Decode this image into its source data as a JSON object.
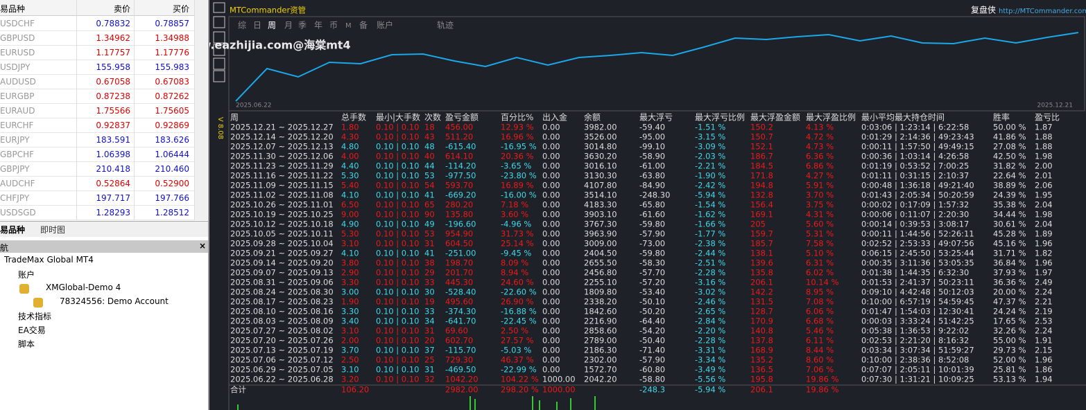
{
  "market_watch": {
    "headers": [
      "易品种",
      "卖价",
      "买价"
    ],
    "rows": [
      [
        "USDCHF",
        "0.78832",
        "0.78857",
        "#1010d0"
      ],
      [
        "GBPUSD",
        "1.34962",
        "1.34988",
        "#e00000"
      ],
      [
        "EURUSD",
        "1.17757",
        "1.17776",
        "#e00000"
      ],
      [
        "USDJPY",
        "155.958",
        "155.983",
        "#1010d0"
      ],
      [
        "AUDUSD",
        "0.67058",
        "0.67083",
        "#e00000"
      ],
      [
        "EURGBP",
        "0.87238",
        "0.87262",
        "#e00000"
      ],
      [
        "EURAUD",
        "1.75566",
        "1.75605",
        "#e00000"
      ],
      [
        "EURCHF",
        "0.92837",
        "0.92869",
        "#e00000"
      ],
      [
        "EURJPY",
        "183.591",
        "183.626",
        "#1010d0"
      ],
      [
        "GBPCHF",
        "1.06398",
        "1.06444",
        "#1010d0"
      ],
      [
        "GBPJPY",
        "210.418",
        "210.460",
        "#1010d0"
      ],
      [
        "AUDCHF",
        "0.52864",
        "0.52900",
        "#e00000"
      ],
      [
        "CHFJPY",
        "197.717",
        "197.766",
        "#1010d0"
      ],
      [
        "USDSGD",
        "1.28293",
        "1.28512",
        "#1010d0"
      ]
    ],
    "tabs": [
      "易品种",
      "即时图"
    ]
  },
  "navigator": {
    "title": "航",
    "items": [
      "TradeMax Global MT4",
      "账户",
      "XMGlobal-Demo 4",
      "78324556: Demo Account",
      "技术指标",
      "EA交易",
      "脚本"
    ]
  },
  "panel": {
    "title": "MTCommander资管",
    "brand": "复盘侠",
    "url": "http://MTCommander.com",
    "watermark": "www.eazhijia.com@海棠mt4",
    "version": "V 8.08",
    "tabs": [
      "综",
      "日",
      "周",
      "月",
      "季",
      "年",
      "币",
      "M",
      "备",
      "账户",
      "轨迹"
    ],
    "active_tab": 2
  },
  "chart_data": {
    "type": "line",
    "color": "#1aa8ea",
    "ylim": [
      0,
      110
    ],
    "x_labels": [
      "2025.06.22",
      "2025.12.21"
    ],
    "values": [
      4,
      51,
      39,
      60,
      58,
      71,
      72,
      62,
      54,
      67,
      56,
      67,
      70,
      74,
      70,
      82,
      95,
      93,
      97,
      100,
      91,
      98,
      88,
      87,
      95,
      88,
      96,
      103
    ]
  },
  "table": {
    "headers": [
      "周",
      "总手数",
      "最小|大手数",
      "次数",
      "盈亏金额",
      "百分比%",
      "出入金",
      "余额",
      "最大浮亏",
      "最大浮亏比例",
      "最大浮盈金额",
      "最大浮盈比例",
      "最小平均最大持仓时间",
      "胜率",
      "盈亏比"
    ],
    "rows": [
      [
        "2025.12.21 ~ 2025.12.27",
        "1.80",
        "0.10 | 0.10",
        "18",
        "456.00",
        "12.93 %",
        "0.00",
        "3982.00",
        "-59.40",
        "-1.51 %",
        "150.2",
        "4.13 %",
        "0:03:06 | 1:23:14 | 6:22:58",
        "50.00 %",
        "1.87"
      ],
      [
        "2025.12.14 ~ 2025.12.20",
        "4.30",
        "0.10 | 0.10",
        "43",
        "511.20",
        "16.96 %",
        "0.00",
        "3526.00",
        "-95.00",
        "-3.15 %",
        "150.7",
        "4.72 %",
        "0:01:29 | 2:14:36 | 49:23:43",
        "41.86 %",
        "1.88"
      ],
      [
        "2025.12.07 ~ 2025.12.13",
        "4.80",
        "0.10 | 0.10",
        "48",
        "-615.40",
        "-16.95 %",
        "0.00",
        "3014.80",
        "-99.10",
        "-3.09 %",
        "152.1",
        "4.73 %",
        "0:00:11 | 1:57:50 | 49:49:15",
        "27.08 %",
        "1.88"
      ],
      [
        "2025.11.30 ~ 2025.12.06",
        "4.00",
        "0.10 | 0.10",
        "40",
        "614.10",
        "20.36 %",
        "0.00",
        "3630.20",
        "-58.90",
        "-2.03 %",
        "186.7",
        "6.36 %",
        "0:00:36 | 1:03:14 | 4:26:58",
        "42.50 %",
        "1.98"
      ],
      [
        "2025.11.23 ~ 2025.11.29",
        "4.40",
        "0.10 | 0.10",
        "44",
        "-114.20",
        "-3.65 %",
        "0.00",
        "3016.10",
        "-61.00",
        "-2.21 %",
        "184.5",
        "6.86 %",
        "0:01:19 | 0:53:52 | 7:00:25",
        "31.82 %",
        "2.00"
      ],
      [
        "2025.11.16 ~ 2025.11.22",
        "5.30",
        "0.10 | 0.10",
        "53",
        "-977.50",
        "-23.80 %",
        "0.00",
        "3130.30",
        "-63.80",
        "-1.90 %",
        "171.8",
        "4.27 %",
        "0:01:11 | 0:31:15 | 2:10:37",
        "22.64 %",
        "2.01"
      ],
      [
        "2025.11.09 ~ 2025.11.15",
        "5.40",
        "0.10 | 0.10",
        "54",
        "593.70",
        "16.89 %",
        "0.00",
        "4107.80",
        "-84.90",
        "-2.42 %",
        "194.8",
        "5.91 %",
        "0:00:48 | 1:36:18 | 49:21:40",
        "38.89 %",
        "2.06"
      ],
      [
        "2025.11.02 ~ 2025.11.08",
        "4.10",
        "0.10 | 0.10",
        "41",
        "-669.20",
        "-16.00 %",
        "0.00",
        "3514.10",
        "-248.30",
        "-5.94 %",
        "132.8",
        "3.70 %",
        "0:01:43 | 2:05:34 | 50:20:59",
        "24.39 %",
        "1.95"
      ],
      [
        "2025.10.26 ~ 2025.11.01",
        "6.50",
        "0.10 | 0.10",
        "65",
        "280.20",
        "7.18 %",
        "0.00",
        "4183.30",
        "-65.80",
        "-1.54 %",
        "156.4",
        "3.75 %",
        "0:00:02 | 0:17:09 | 1:57:32",
        "35.38 %",
        "2.04"
      ],
      [
        "2025.10.19 ~ 2025.10.25",
        "9.00",
        "0.10 | 0.10",
        "90",
        "135.80",
        "3.60 %",
        "0.00",
        "3903.10",
        "-61.60",
        "-1.62 %",
        "169.1",
        "4.31 %",
        "0:00:06 | 0:11:07 | 2:20:30",
        "34.44 %",
        "1.98"
      ],
      [
        "2025.10.12 ~ 2025.10.18",
        "4.90",
        "0.10 | 0.10",
        "49",
        "-196.60",
        "-4.96 %",
        "0.00",
        "3767.30",
        "-59.80",
        "-1.66 %",
        "205",
        "5.60 %",
        "0:00:14 | 0:39:53 | 3:08:17",
        "30.61 %",
        "2.04"
      ],
      [
        "2025.10.05 ~ 2025.10.11",
        "5.30",
        "0.10 | 0.10",
        "53",
        "954.90",
        "31.73 %",
        "0.00",
        "3963.90",
        "-57.90",
        "-1.77 %",
        "159.7",
        "5.31 %",
        "0:00:11 | 1:44:56 | 52:26:11",
        "45.28 %",
        "1.89"
      ],
      [
        "2025.09.28 ~ 2025.10.04",
        "3.10",
        "0.10 | 0.10",
        "31",
        "604.50",
        "25.14 %",
        "0.00",
        "3009.00",
        "-73.00",
        "-2.38 %",
        "185.7",
        "7.58 %",
        "0:02:52 | 2:53:33 | 49:07:56",
        "45.16 %",
        "1.96"
      ],
      [
        "2025.09.21 ~ 2025.09.27",
        "4.10",
        "0.10 | 0.10",
        "41",
        "-251.00",
        "-9.45 %",
        "0.00",
        "2404.50",
        "-59.80",
        "-2.44 %",
        "138.1",
        "5.10 %",
        "0:06:15 | 2:45:50 | 53:25:44",
        "31.71 %",
        "1.82"
      ],
      [
        "2025.09.14 ~ 2025.09.20",
        "3.80",
        "0.10 | 0.10",
        "38",
        "198.70",
        "8.09 %",
        "0.00",
        "2655.50",
        "-58.30",
        "-2.51 %",
        "139.6",
        "6.31 %",
        "0:00:35 | 3:11:36 | 53:05:35",
        "36.84 %",
        "1.96"
      ],
      [
        "2025.09.07 ~ 2025.09.13",
        "2.90",
        "0.10 | 0.10",
        "29",
        "201.70",
        "8.94 %",
        "0.00",
        "2456.80",
        "-57.70",
        "-2.28 %",
        "135.8",
        "6.02 %",
        "0:01:38 | 1:44:35 | 6:32:30",
        "37.93 %",
        "1.97"
      ],
      [
        "2025.08.31 ~ 2025.09.06",
        "3.30",
        "0.10 | 0.10",
        "33",
        "445.30",
        "24.60 %",
        "0.00",
        "2255.10",
        "-57.20",
        "-3.16 %",
        "206.1",
        "10.14 %",
        "0:01:53 | 2:41:37 | 50:23:11",
        "36.36 %",
        "2.49"
      ],
      [
        "2025.08.24 ~ 2025.08.30",
        "3.00",
        "0.10 | 0.10",
        "30",
        "-528.40",
        "-22.60 %",
        "0.00",
        "1809.80",
        "-53.40",
        "-3.02 %",
        "142.2",
        "8.95 %",
        "0:09:10 | 4:42:48 | 50:12:03",
        "20.00 %",
        "2.24"
      ],
      [
        "2025.08.17 ~ 2025.08.23",
        "1.90",
        "0.10 | 0.10",
        "19",
        "495.60",
        "26.90 %",
        "0.00",
        "2338.20",
        "-50.10",
        "-2.46 %",
        "131.5",
        "7.08 %",
        "0:10:00 | 6:57:19 | 54:59:45",
        "47.37 %",
        "2.21"
      ],
      [
        "2025.08.10 ~ 2025.08.16",
        "3.30",
        "0.10 | 0.10",
        "33",
        "-374.30",
        "-16.88 %",
        "0.00",
        "1842.60",
        "-50.20",
        "-2.65 %",
        "128.7",
        "6.06 %",
        "0:01:47 | 1:54:03 | 12:30:41",
        "24.24 %",
        "2.19"
      ],
      [
        "2025.08.03 ~ 2025.08.09",
        "3.40",
        "0.10 | 0.10",
        "34",
        "-641.70",
        "-22.45 %",
        "0.00",
        "2216.90",
        "-64.40",
        "-2.84 %",
        "170.9",
        "6.68 %",
        "0:00:03 | 3:33:24 | 51:42:25",
        "17.65 %",
        "2.53"
      ],
      [
        "2025.07.27 ~ 2025.08.02",
        "3.10",
        "0.10 | 0.10",
        "31",
        "69.60",
        "2.50 %",
        "0.00",
        "2858.60",
        "-54.20",
        "-2.20 %",
        "140.8",
        "5.46 %",
        "0:05:38 | 1:36:53 | 9:22:02",
        "32.26 %",
        "2.24"
      ],
      [
        "2025.07.20 ~ 2025.07.26",
        "2.00",
        "0.10 | 0.10",
        "20",
        "602.70",
        "27.57 %",
        "0.00",
        "2789.00",
        "-50.40",
        "-2.28 %",
        "137.8",
        "6.11 %",
        "0:02:53 | 2:21:20 | 8:16:32",
        "55.00 %",
        "1.91"
      ],
      [
        "2025.07.13 ~ 2025.07.19",
        "3.70",
        "0.10 | 0.10",
        "37",
        "-115.70",
        "-5.03 %",
        "0.00",
        "2186.30",
        "-71.40",
        "-3.31 %",
        "168.9",
        "8.44 %",
        "0:03:34 | 3:07:34 | 51:59:27",
        "29.73 %",
        "2.15"
      ],
      [
        "2025.07.06 ~ 2025.07.12",
        "2.50",
        "0.10 | 0.10",
        "25",
        "729.30",
        "46.37 %",
        "0.00",
        "2302.00",
        "-57.90",
        "-3.34 %",
        "135.2",
        "8.60 %",
        "0:10:00 | 2:38:36 | 8:52:08",
        "52.00 %",
        "1.96"
      ],
      [
        "2025.06.29 ~ 2025.07.05",
        "3.10",
        "0.10 | 0.10",
        "31",
        "-469.50",
        "-22.99 %",
        "0.00",
        "1572.70",
        "-60.80",
        "-3.49 %",
        "136.5",
        "7.06 %",
        "0:07:07 | 2:05:11 | 10:01:39",
        "25.81 %",
        "1.86"
      ],
      [
        "2025.06.22 ~ 2025.06.28",
        "3.20",
        "0.10 | 0.10",
        "32",
        "1042.20",
        "104.22 %",
        "1000.00",
        "2042.20",
        "-58.80",
        "-5.56 %",
        "195.8",
        "19.86 %",
        "0:07:30 | 1:31:21 | 10:09:25",
        "53.13 %",
        "1.94"
      ]
    ],
    "total": {
      "label": "合计",
      "lots": "106.20",
      "profit": "2982.00",
      "pct": "298.20 %",
      "io": "1000.00",
      "maxloss": "-248.3",
      "maxlossPct": "-5.94 %",
      "maxgain": "206.1",
      "maxgainPct": "19.86 %"
    }
  }
}
